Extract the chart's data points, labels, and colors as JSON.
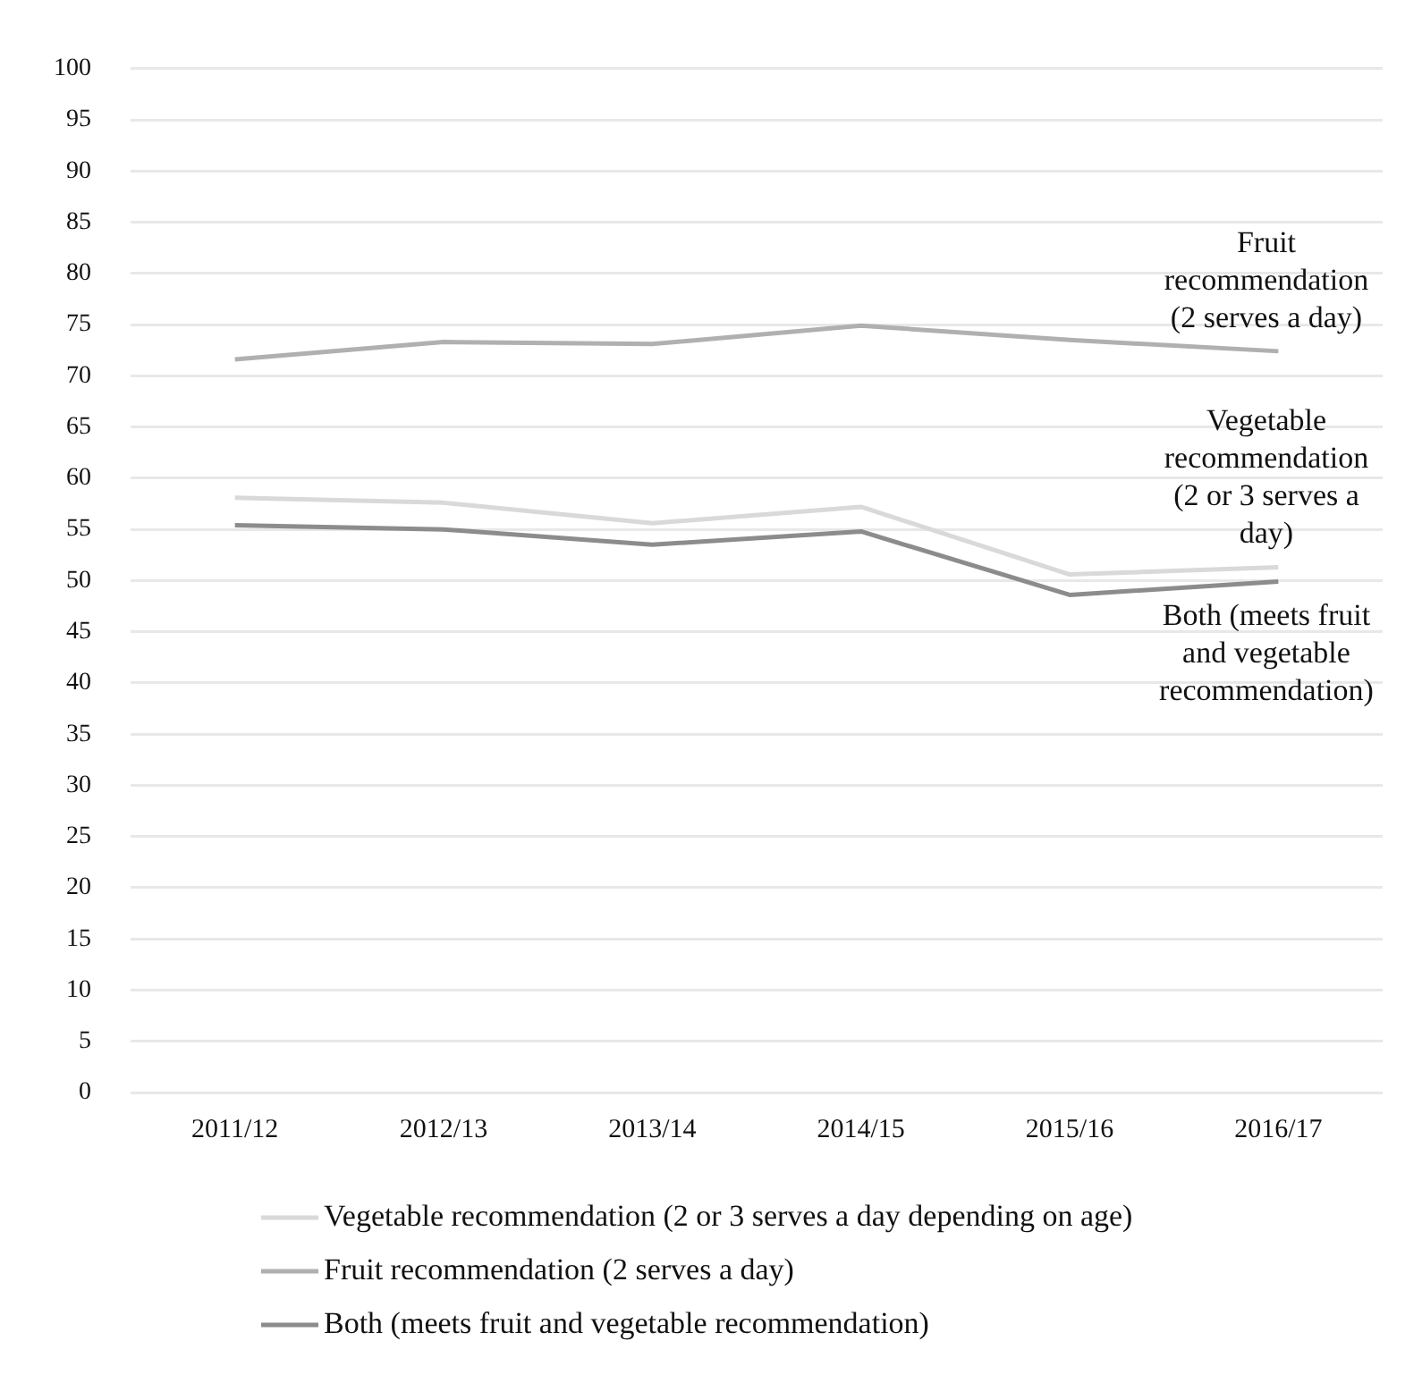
{
  "chart_data": {
    "type": "line",
    "categories": [
      "2011/12",
      "2012/13",
      "2013/14",
      "2014/15",
      "2015/16",
      "2016/17"
    ],
    "series": [
      {
        "name": "Vegetable recommendation (2 or 3 serves a day depending on age)",
        "color": "#d9d9d9",
        "values": [
          58.1,
          57.6,
          55.6,
          57.2,
          50.6,
          51.3
        ]
      },
      {
        "name": "Fruit recommendation (2 serves a day)",
        "color": "#b0b0b0",
        "values": [
          71.6,
          73.3,
          73.1,
          74.9,
          73.5,
          72.4
        ]
      },
      {
        "name": "Both (meets fruit and vegetable recommendation)",
        "color": "#8c8c8c",
        "values": [
          55.4,
          55.0,
          53.5,
          54.8,
          48.6,
          49.9
        ]
      }
    ],
    "annotations": [
      {
        "text": "Fruit recommendation (2 serves a day)",
        "x": "2016/17",
        "y": 72.4
      },
      {
        "text": "Vegetable recommendation (2 or 3 serves a day)",
        "x": "2016/17",
        "y": 51.3
      },
      {
        "text": "Both (meets fruit and vegetable recommendation)",
        "x": "2016/17",
        "y": 49.9
      }
    ],
    "ylim": [
      0,
      100
    ],
    "yticks": [
      0,
      5,
      10,
      15,
      20,
      25,
      30,
      35,
      40,
      45,
      50,
      55,
      60,
      65,
      70,
      75,
      80,
      85,
      90,
      95,
      100
    ],
    "grid": "y",
    "legend": "bottom",
    "marker": "none",
    "line_style": "solid"
  }
}
